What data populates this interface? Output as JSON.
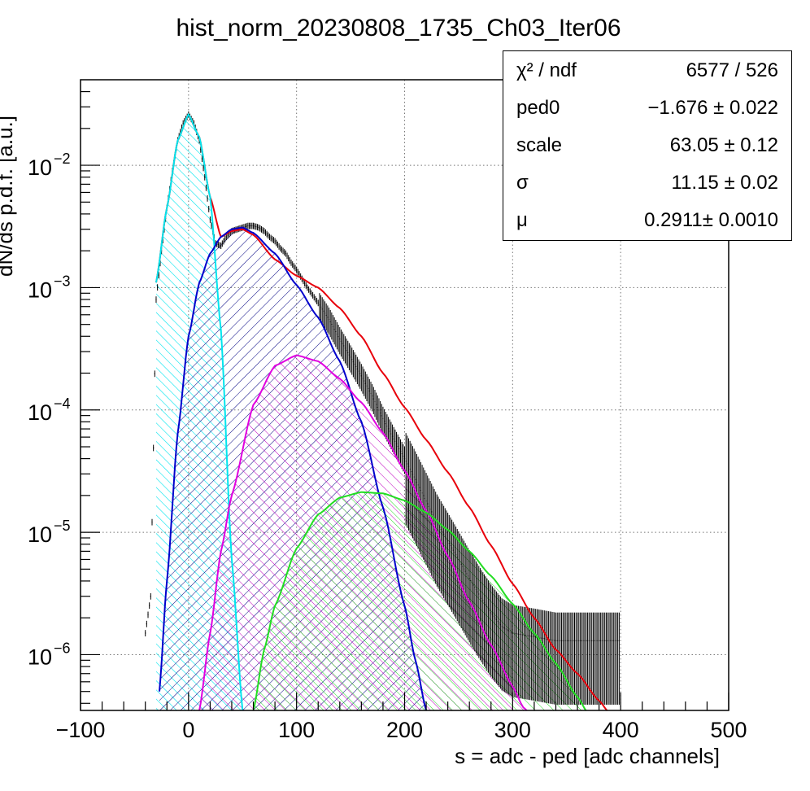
{
  "chart_data": {
    "type": "line",
    "title": "hist_norm_20230808_1735_Ch03_Iter06",
    "xlabel": "s = adc - ped [adc channels]",
    "ylabel": "dN/ds p.d.f. [a.u.]",
    "xlim": [
      -100,
      500
    ],
    "ylim": [
      3.5e-07,
      0.05
    ],
    "yscale": "log",
    "grid": true,
    "x_ticks": [
      {
        "value": -100,
        "label": "−100"
      },
      {
        "value": 0,
        "label": "0"
      },
      {
        "value": 100,
        "label": "100"
      },
      {
        "value": 200,
        "label": "200"
      },
      {
        "value": 300,
        "label": "300"
      },
      {
        "value": 400,
        "label": "400"
      },
      {
        "value": 500,
        "label": "500"
      }
    ],
    "y_ticks": [
      {
        "value": 0.01,
        "base": "10",
        "exp": "−2"
      },
      {
        "value": 0.001,
        "base": "10",
        "exp": "−3"
      },
      {
        "value": 0.0001,
        "base": "10",
        "exp": "−4"
      },
      {
        "value": 1e-05,
        "base": "10",
        "exp": "−5"
      },
      {
        "value": 1e-06,
        "base": "10",
        "exp": "−6"
      }
    ],
    "series": [
      {
        "color": "#e8000b",
        "role": "total-fit",
        "x": [
          -30,
          -20,
          -10,
          0,
          10,
          20,
          30,
          40,
          50,
          60,
          80,
          100,
          120,
          140,
          160,
          180,
          200,
          220,
          240,
          260,
          280,
          300,
          320,
          340,
          360,
          380,
          390
        ],
        "y": [
          0.0011,
          0.0045,
          0.016,
          0.026,
          0.017,
          0.0055,
          0.0026,
          0.0029,
          0.003,
          0.0027,
          0.0017,
          0.00125,
          0.001,
          0.00068,
          0.0004,
          0.0002,
          0.000105,
          5.7e-05,
          3.1e-05,
          1.6e-05,
          7.8e-06,
          3.8e-06,
          2e-06,
          1.1e-06,
          7e-07,
          4.2e-07,
          3.3e-07
        ]
      },
      {
        "color": "#00e5ee",
        "role": "pedestal-component",
        "filled": true,
        "x": [
          -30,
          -20,
          -10,
          0,
          10,
          20,
          30,
          40,
          50
        ],
        "y": [
          0.0011,
          0.0045,
          0.016,
          0.026,
          0.017,
          0.0055,
          0.00045,
          6e-06,
          3.5e-07
        ]
      },
      {
        "color": "#0000cc",
        "role": "1-pe-component",
        "filled": true,
        "x": [
          -27,
          -20,
          -10,
          0,
          10,
          20,
          30,
          40,
          50,
          60,
          80,
          100,
          120,
          140,
          160,
          180,
          200,
          210,
          220
        ],
        "y": [
          5e-07,
          4e-06,
          6.5e-05,
          0.0004,
          0.0011,
          0.0019,
          0.0026,
          0.003,
          0.0031,
          0.0028,
          0.0019,
          0.00105,
          0.00057,
          0.00025,
          8e-05,
          1.6e-05,
          2.5e-06,
          9e-07,
          3.5e-07
        ]
      },
      {
        "color": "#e000e0",
        "role": "2-pe-component",
        "filled": true,
        "x": [
          10,
          20,
          30,
          40,
          60,
          80,
          100,
          120,
          140,
          160,
          180,
          200,
          220,
          240,
          260,
          280,
          300,
          310,
          320
        ],
        "y": [
          3.5e-07,
          1.5e-06,
          7e-06,
          2e-05,
          0.00011,
          0.00023,
          0.00028,
          0.00025,
          0.00018,
          0.000115,
          6.5e-05,
          3.2e-05,
          1.5e-05,
          6.4e-06,
          2.7e-06,
          1.2e-06,
          5.5e-07,
          3.7e-07,
          3e-07
        ]
      },
      {
        "color": "#22dd22",
        "role": "3-pe-component",
        "filled": true,
        "x": [
          60,
          70,
          80,
          100,
          120,
          140,
          160,
          180,
          200,
          220,
          240,
          260,
          280,
          300,
          320,
          340,
          360,
          370
        ],
        "y": [
          3.5e-07,
          1.1e-06,
          2.5e-06,
          7.4e-06,
          1.4e-05,
          1.92e-05,
          2.13e-05,
          2.08e-05,
          1.82e-05,
          1.45e-05,
          1.05e-05,
          7e-06,
          4.4e-06,
          2.6e-06,
          1.5e-06,
          8.5e-07,
          4.5e-07,
          3.3e-07
        ]
      },
      {
        "color": "#000000",
        "role": "data-histogram",
        "x": [
          -40,
          -35,
          -30,
          -25,
          -20,
          -15,
          -10,
          -5,
          0,
          5,
          10,
          15,
          20,
          25,
          30,
          35,
          40,
          45,
          50,
          55,
          60,
          65,
          70,
          75,
          80,
          85,
          90,
          95,
          100,
          110,
          120,
          130,
          140,
          150,
          160,
          170,
          180,
          190,
          200,
          210,
          220,
          230,
          240,
          250,
          260,
          270,
          280,
          290,
          300,
          320,
          340,
          360,
          380,
          400
        ],
        "y": [
          1.5e-06,
          3e-06,
          0.0008,
          0.002,
          0.0045,
          0.009,
          0.016,
          0.022,
          0.026,
          0.022,
          0.016,
          0.008,
          0.0036,
          0.0023,
          0.0022,
          0.0026,
          0.0029,
          0.003,
          0.0031,
          0.0032,
          0.0032,
          0.0031,
          0.0029,
          0.0026,
          0.0024,
          0.0021,
          0.0019,
          0.0016,
          0.0014,
          0.001,
          0.00075,
          0.00055,
          0.00038,
          0.00027,
          0.00019,
          0.00013,
          8.5e-05,
          5.8e-05,
          4e-05,
          2.7e-05,
          1.8e-05,
          1.2e-05,
          8.5e-06,
          6e-06,
          4.2e-06,
          3e-06,
          2.2e-06,
          1.7e-06,
          1.5e-06,
          1.4e-06,
          1.3e-06,
          1.3e-06,
          1.3e-06,
          1.3e-06
        ]
      }
    ]
  },
  "stats": [
    {
      "name": "χ² / ndf",
      "value": "6577 / 526"
    },
    {
      "name": "ped0",
      "value": "−1.676 ± 0.022"
    },
    {
      "name": "scale",
      "value": "63.05 ± 0.12"
    },
    {
      "name": "σ",
      "value": "11.15 ± 0.02"
    },
    {
      "name": "μ",
      "value": "0.2911± 0.0010"
    }
  ]
}
